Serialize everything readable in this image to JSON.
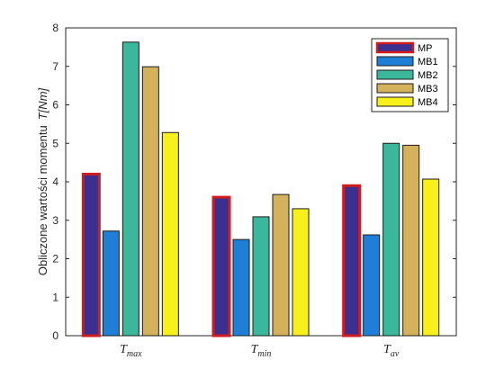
{
  "chart_data": {
    "type": "bar",
    "categories": [
      {
        "main": "T",
        "sub": "max"
      },
      {
        "main": "T",
        "sub": "min"
      },
      {
        "main": "T",
        "sub": "av"
      }
    ],
    "series": [
      {
        "name": "MP",
        "color": "#3b2f8f",
        "edge": "#d01c1c",
        "values": [
          4.2,
          3.6,
          3.9
        ]
      },
      {
        "name": "MB1",
        "color": "#1f7fd6",
        "edge": "#1a1a1a",
        "values": [
          2.72,
          2.5,
          2.62
        ]
      },
      {
        "name": "MB2",
        "color": "#3bb89c",
        "edge": "#1a1a1a",
        "values": [
          7.63,
          3.09,
          5.0
        ]
      },
      {
        "name": "MB3",
        "color": "#d4b25c",
        "edge": "#1a1a1a",
        "values": [
          6.99,
          3.67,
          4.95
        ]
      },
      {
        "name": "MB4",
        "color": "#f7f01a",
        "edge": "#1a1a1a",
        "values": [
          5.28,
          3.3,
          4.07
        ]
      }
    ],
    "ylabel_text": "Obliczone wartości momentu",
    "ylabel_symbol": "T[Nm]",
    "yticks": [
      "0",
      "1",
      "2",
      "3",
      "4",
      "5",
      "6",
      "7",
      "8"
    ],
    "ylim": [
      0,
      8
    ],
    "legend_position": "top-right",
    "grid": false
  }
}
